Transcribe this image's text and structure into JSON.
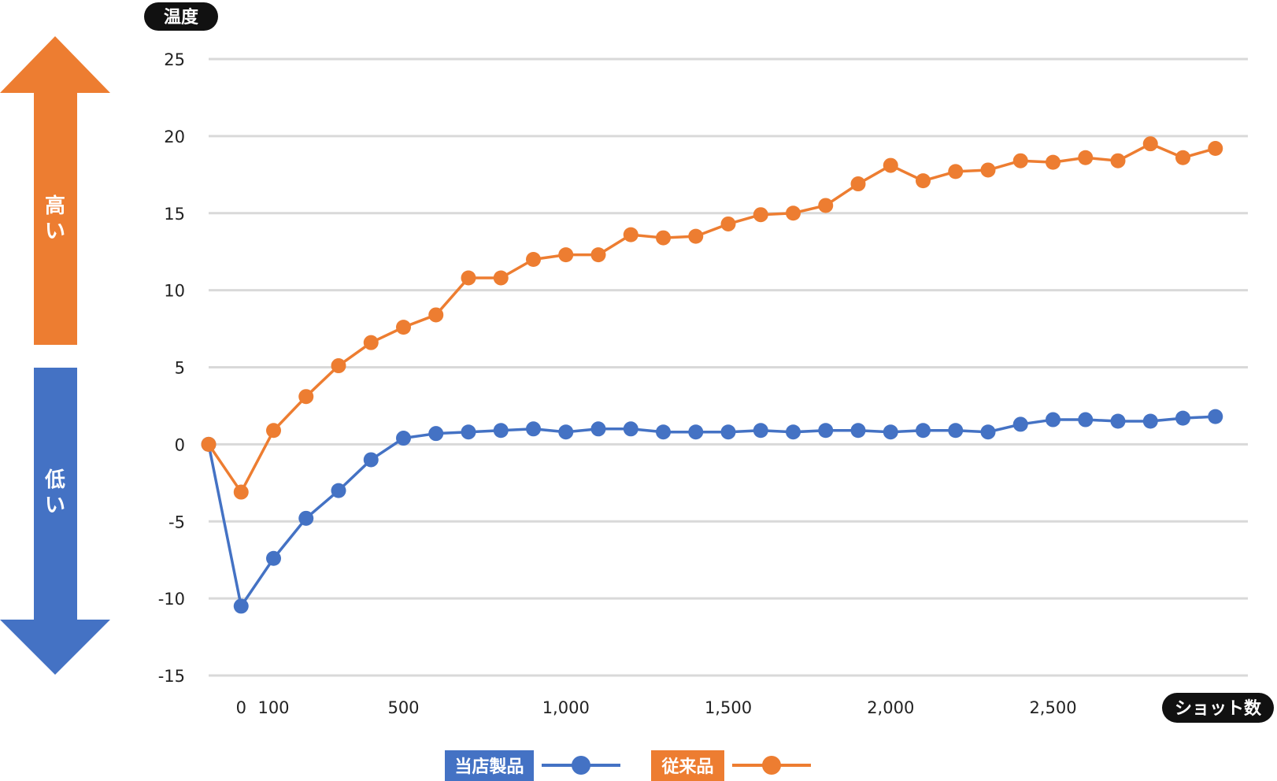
{
  "chart_data": {
    "type": "line",
    "y_axis_title": "温度",
    "x_axis_title": "ショット数",
    "ylim": [
      -15,
      25
    ],
    "y_ticks": [
      "25",
      "20",
      "15",
      "10",
      "5",
      "0",
      "-5",
      "-10",
      "-15"
    ],
    "x_tick_labels": [
      {
        "label": "0",
        "x": 0
      },
      {
        "label": "100",
        "x": 100
      },
      {
        "label": "500",
        "x": 500
      },
      {
        "label": "1,000",
        "x": 1000
      },
      {
        "label": "1,500",
        "x": 1500
      },
      {
        "label": "2,000",
        "x": 2000
      },
      {
        "label": "2,500",
        "x": 2500
      }
    ],
    "x": [
      -100,
      0,
      100,
      200,
      300,
      400,
      500,
      600,
      700,
      800,
      900,
      1000,
      1100,
      1200,
      1300,
      1400,
      1500,
      1600,
      1700,
      1800,
      1900,
      2000,
      2100,
      2200,
      2300,
      2400,
      2500,
      2600,
      2700,
      2800,
      2900,
      3000,
      3100
    ],
    "grid": true,
    "series": [
      {
        "name": "当店製品",
        "color": "#4472c4",
        "values": [
          0,
          -10.5,
          -7.4,
          -4.8,
          -3.0,
          -1.0,
          0.4,
          0.7,
          0.8,
          0.9,
          1.0,
          0.8,
          1.0,
          1.0,
          0.8,
          0.8,
          0.8,
          0.9,
          0.8,
          0.9,
          0.9,
          0.8,
          0.9,
          0.9,
          0.8,
          1.3,
          1.6,
          1.6,
          1.5,
          1.5,
          1.7,
          1.8,
          null
        ]
      },
      {
        "name": "従来品",
        "color": "#ed7d31",
        "values": [
          0,
          -3.1,
          0.9,
          3.1,
          5.1,
          6.6,
          7.6,
          8.4,
          10.8,
          10.8,
          12.0,
          12.3,
          12.3,
          13.6,
          13.4,
          13.5,
          14.3,
          14.9,
          15.0,
          15.5,
          16.9,
          18.1,
          17.1,
          17.7,
          17.8,
          18.4,
          18.3,
          18.6,
          18.4,
          19.5,
          18.6,
          19.2,
          null
        ]
      }
    ],
    "legend_position": "bottom"
  },
  "arrows": {
    "high_label": [
      "高",
      "い"
    ],
    "low_label": [
      "低",
      "い"
    ],
    "high_color": "#ed7d31",
    "low_color": "#4472c4"
  }
}
